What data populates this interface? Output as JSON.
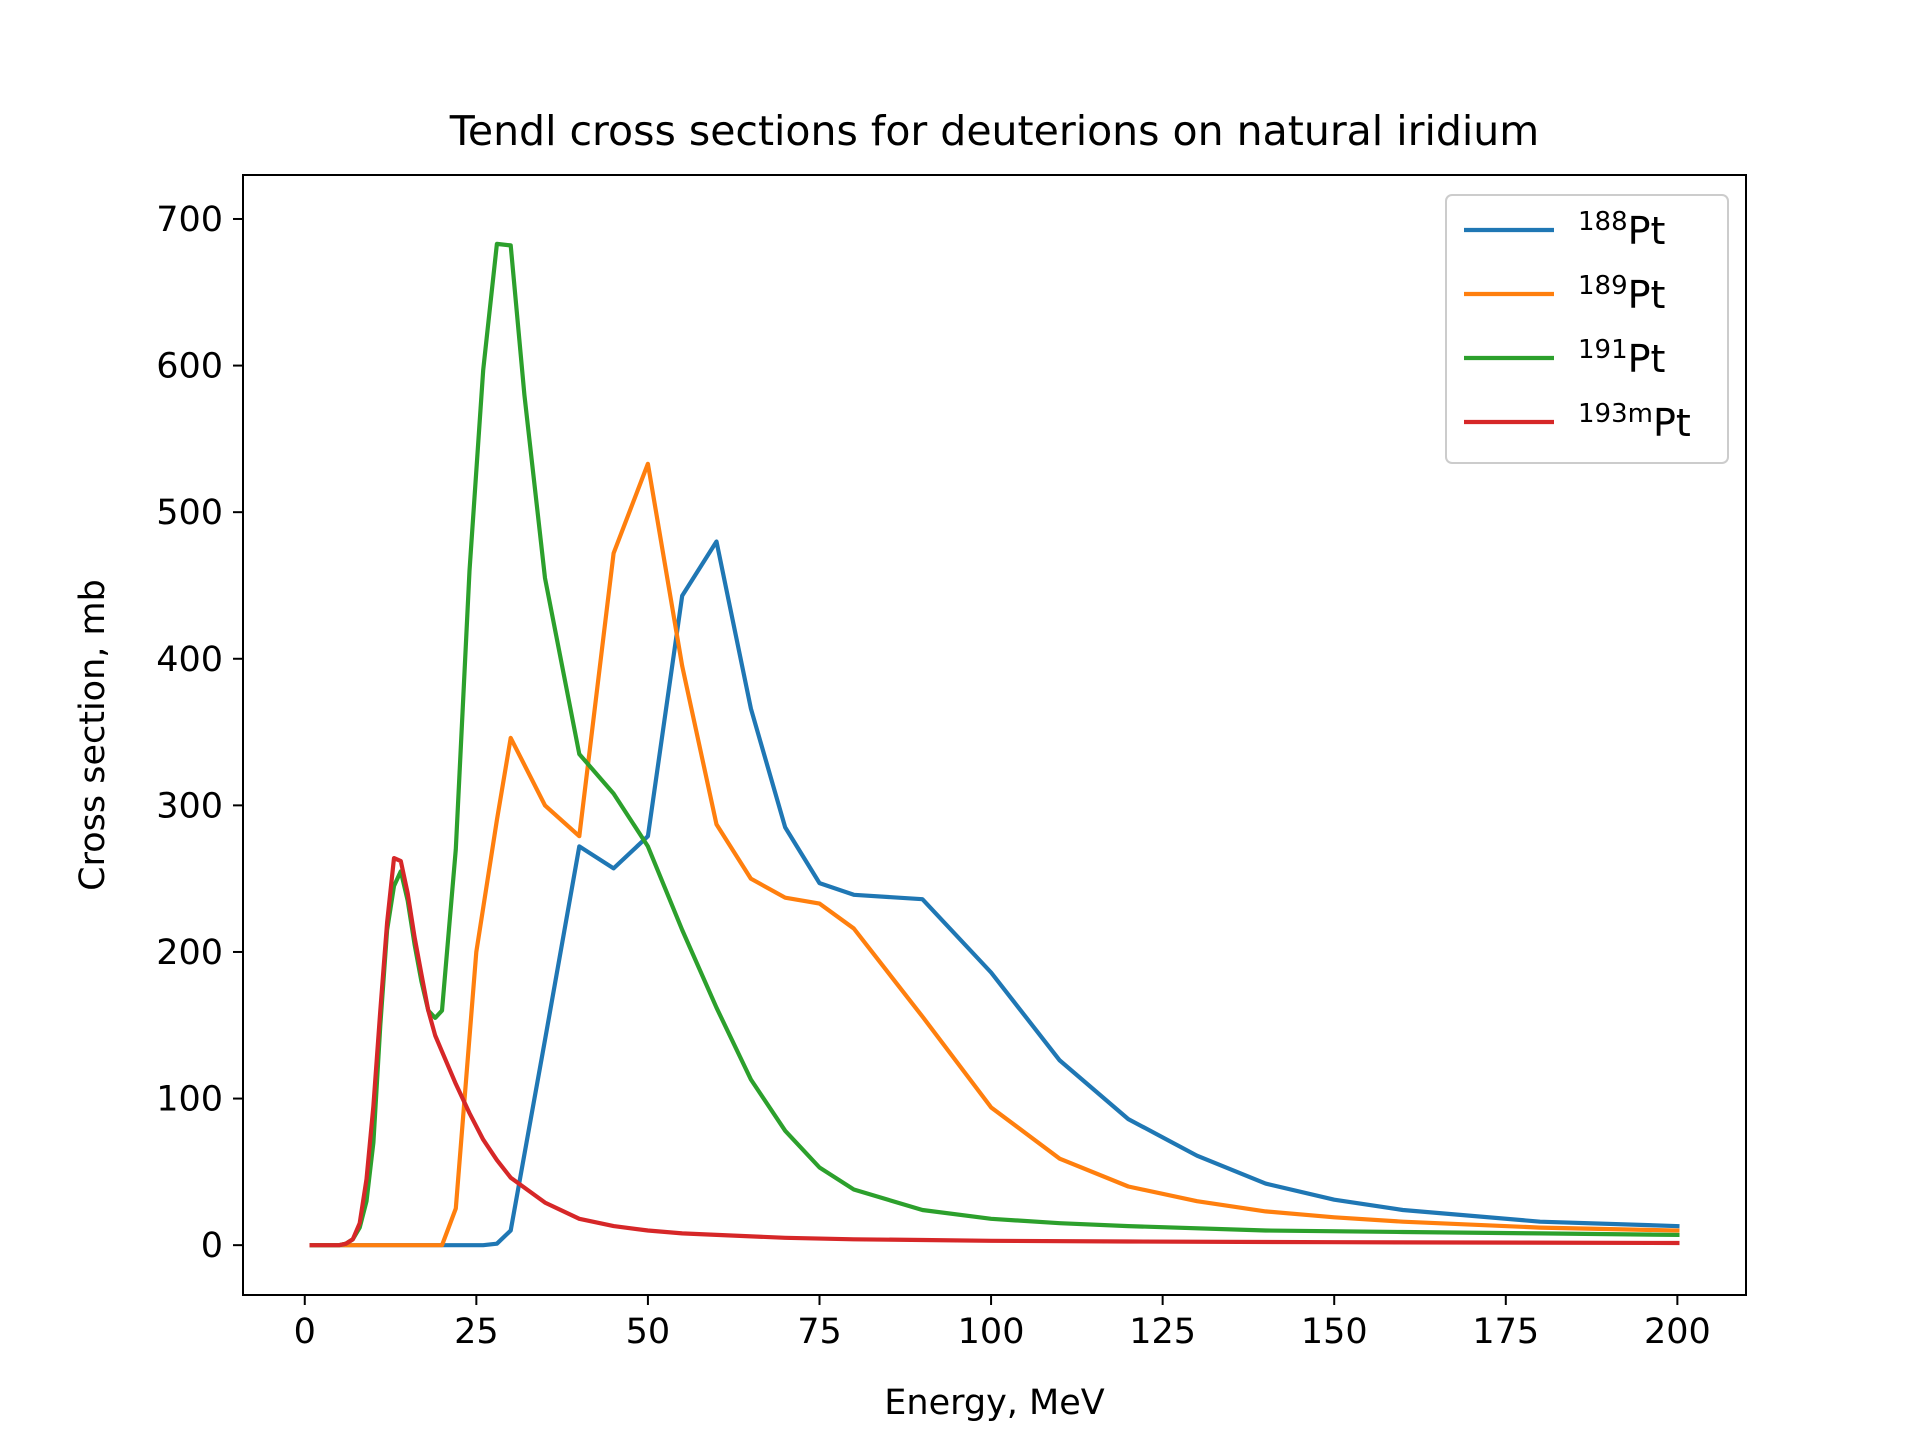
{
  "chart_data": {
    "type": "line",
    "title": "Tendl cross sections for deuterions on natural iridium",
    "xlabel": "Energy, MeV",
    "ylabel": "Cross section, mb",
    "xlim": [
      -9,
      210
    ],
    "ylim": [
      -34,
      730
    ],
    "xticks": [
      0,
      25,
      50,
      75,
      100,
      125,
      150,
      175,
      200
    ],
    "yticks": [
      0,
      100,
      200,
      300,
      400,
      500,
      600,
      700
    ],
    "grid": false,
    "legend_position": "top-right",
    "series": [
      {
        "name": "188Pt",
        "mass_number": "188",
        "element": "Pt",
        "color": "#1f77b4",
        "x": [
          1,
          5,
          10,
          15,
          20,
          22,
          24,
          26,
          28,
          30,
          35,
          40,
          45,
          50,
          55,
          60,
          65,
          70,
          75,
          80,
          90,
          100,
          110,
          120,
          130,
          140,
          150,
          160,
          180,
          200
        ],
        "y": [
          0,
          0,
          0,
          0,
          0,
          0,
          0,
          0,
          1,
          10,
          140,
          272,
          257,
          279,
          443,
          480,
          366,
          285,
          247,
          239,
          236,
          186,
          126,
          86,
          61,
          42,
          31,
          24,
          16,
          13
        ]
      },
      {
        "name": "189Pt",
        "mass_number": "189",
        "element": "Pt",
        "color": "#ff7f0e",
        "x": [
          1,
          5,
          10,
          15,
          20,
          22,
          25,
          28,
          30,
          35,
          40,
          45,
          50,
          55,
          60,
          65,
          70,
          75,
          80,
          90,
          100,
          110,
          120,
          130,
          140,
          150,
          160,
          180,
          200
        ],
        "y": [
          0,
          0,
          0,
          0,
          0,
          25,
          200,
          290,
          346,
          300,
          279,
          472,
          533,
          395,
          287,
          250,
          237,
          233,
          216,
          156,
          94,
          59,
          40,
          30,
          23,
          19,
          16,
          12,
          10
        ]
      },
      {
        "name": "191Pt",
        "mass_number": "191",
        "element": "Pt",
        "color": "#2ca02c",
        "x": [
          1,
          5,
          6,
          7,
          8,
          9,
          10,
          11,
          12,
          13,
          14,
          15,
          16,
          17,
          18,
          19,
          20,
          22,
          24,
          26,
          28,
          30,
          32,
          35,
          40,
          45,
          50,
          55,
          60,
          65,
          70,
          75,
          80,
          90,
          100,
          110,
          120,
          140,
          160,
          180,
          200
        ],
        "y": [
          0,
          0,
          1,
          4,
          12,
          30,
          70,
          150,
          215,
          245,
          255,
          235,
          205,
          180,
          160,
          155,
          160,
          270,
          460,
          597,
          683,
          682,
          580,
          455,
          335,
          308,
          272,
          215,
          162,
          113,
          78,
          53,
          38,
          24,
          18,
          15,
          13,
          10,
          9,
          8,
          7
        ]
      },
      {
        "name": "193mPt",
        "mass_number": "193m",
        "element": "Pt",
        "color": "#d62728",
        "x": [
          1,
          5,
          6,
          7,
          8,
          9,
          10,
          11,
          12,
          13,
          14,
          15,
          16,
          17,
          18,
          19,
          20,
          22,
          24,
          26,
          28,
          30,
          35,
          40,
          45,
          50,
          55,
          60,
          70,
          80,
          90,
          100,
          120,
          150,
          200
        ],
        "y": [
          0,
          0,
          1,
          4,
          15,
          45,
          95,
          160,
          220,
          264,
          262,
          240,
          210,
          185,
          160,
          143,
          132,
          110,
          90,
          72,
          58,
          46,
          29,
          18,
          13,
          10,
          8,
          7,
          5,
          4,
          3.5,
          3,
          2.5,
          2,
          1.5
        ]
      }
    ]
  }
}
